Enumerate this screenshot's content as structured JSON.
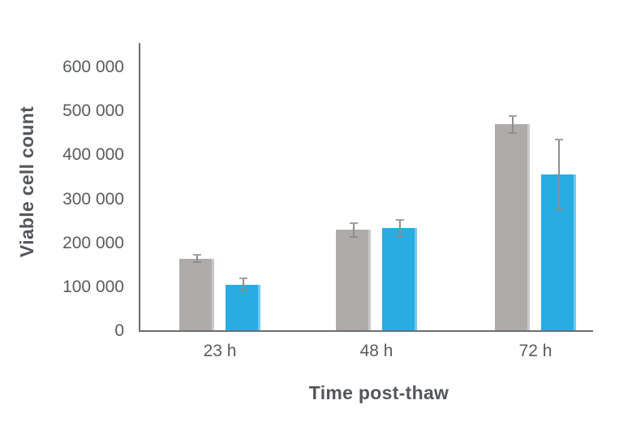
{
  "chart_data": {
    "type": "bar",
    "title": "",
    "xlabel": "Time post-thaw",
    "ylabel": "Viable cell count",
    "categories": [
      "23 h",
      "48 h",
      "72 h"
    ],
    "series": [
      {
        "name": "gray",
        "color": "#afabab",
        "values": [
          165000,
          230000,
          470000
        ],
        "errors": [
          10000,
          18000,
          21000
        ]
      },
      {
        "name": "blue",
        "color": "#29ace2",
        "values": [
          105000,
          235000,
          357000
        ],
        "errors": [
          16000,
          20000,
          81000
        ]
      }
    ],
    "ylim": [
      0,
      600000
    ],
    "yticks": {
      "values": [
        0,
        100000,
        200000,
        300000,
        400000,
        500000,
        600000
      ],
      "labels": [
        "0",
        "100 000",
        "200 000",
        "300 000",
        "400 000",
        "500 000",
        "600 000"
      ]
    },
    "error_bars": true,
    "grid": false,
    "legend_position": "none",
    "colors": {
      "axis": "#6d6e71",
      "tick_text": "#595b5e",
      "title_text": "#54565a",
      "error_bar": "#8c8e91",
      "background": "#ffffff"
    }
  }
}
